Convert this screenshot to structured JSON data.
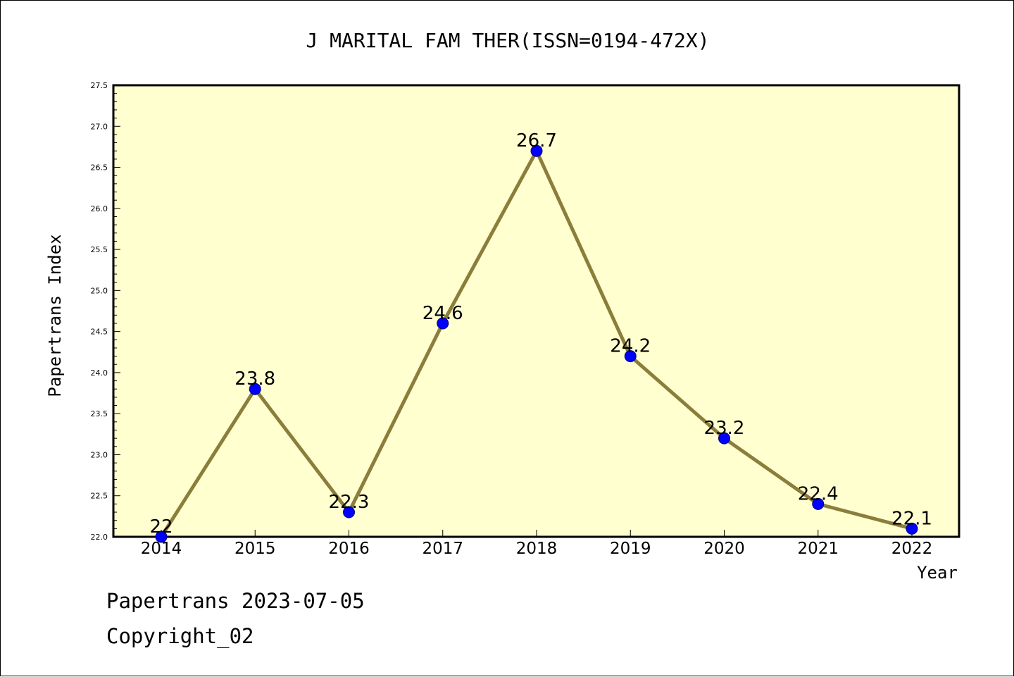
{
  "chart_data": {
    "type": "line",
    "title": "J MARITAL FAM THER(ISSN=0194-472X)",
    "xlabel": "Year",
    "ylabel": "Papertrans Index",
    "categories": [
      "2014",
      "2015",
      "2016",
      "2017",
      "2018",
      "2019",
      "2020",
      "2021",
      "2022"
    ],
    "values": [
      22,
      23.8,
      22.3,
      24.6,
      26.7,
      24.2,
      23.2,
      22.4,
      22.1
    ],
    "data_labels": [
      "22",
      "23.8",
      "22.3",
      "24.6",
      "26.7",
      "24.2",
      "23.2",
      "22.4",
      "22.1"
    ],
    "ylim": [
      22.0,
      27.5
    ],
    "yticks": [
      "22.0",
      "22.5",
      "23.0",
      "23.5",
      "24.0",
      "24.5",
      "25.0",
      "25.5",
      "26.0",
      "26.5",
      "27.0",
      "27.5"
    ],
    "grid": false,
    "colors": {
      "plot_background": "#ffffd0",
      "line": "#8b7d3a",
      "marker": "#0000ff",
      "marker_edge": "#000080"
    }
  },
  "footer": {
    "line1": "Papertrans 2023-07-05",
    "line2": "Copyright_02"
  }
}
